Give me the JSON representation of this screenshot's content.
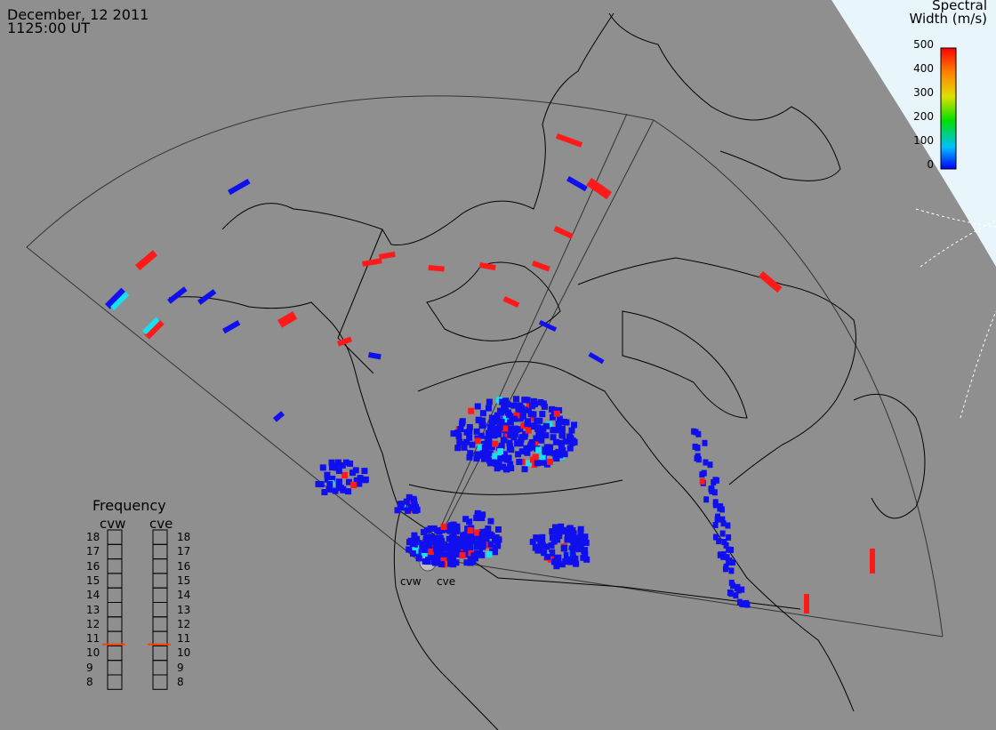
{
  "header": {
    "date": "December, 12 2011",
    "time": "1125:00 UT"
  },
  "colorbar": {
    "title_line1": "Spectral",
    "title_line2": "Width (m/s)",
    "ticks": [
      "500",
      "400",
      "300",
      "200",
      "100",
      "0"
    ],
    "range": [
      0,
      500
    ],
    "colors": [
      "#0000ff",
      "#00c0ff",
      "#00e000",
      "#e0e000",
      "#ff8000",
      "#ff0000"
    ]
  },
  "frequency_panel": {
    "title": "Frequency",
    "radars": [
      "cvw",
      "cve"
    ],
    "ticks": [
      "18",
      "17",
      "16",
      "15",
      "14",
      "13",
      "12",
      "11",
      "10",
      "9",
      "8"
    ],
    "values_mhz": {
      "cvw": 10.6,
      "cve": 10.6
    }
  },
  "radar_labels": {
    "left": "cvw",
    "right": "cve"
  },
  "colors": {
    "background": "#8f8f8f",
    "outer_space": "#e8f6fc",
    "low_width": "#1010ee",
    "high_width": "#ff1a1a",
    "mid_width": "#19e0f0"
  }
}
